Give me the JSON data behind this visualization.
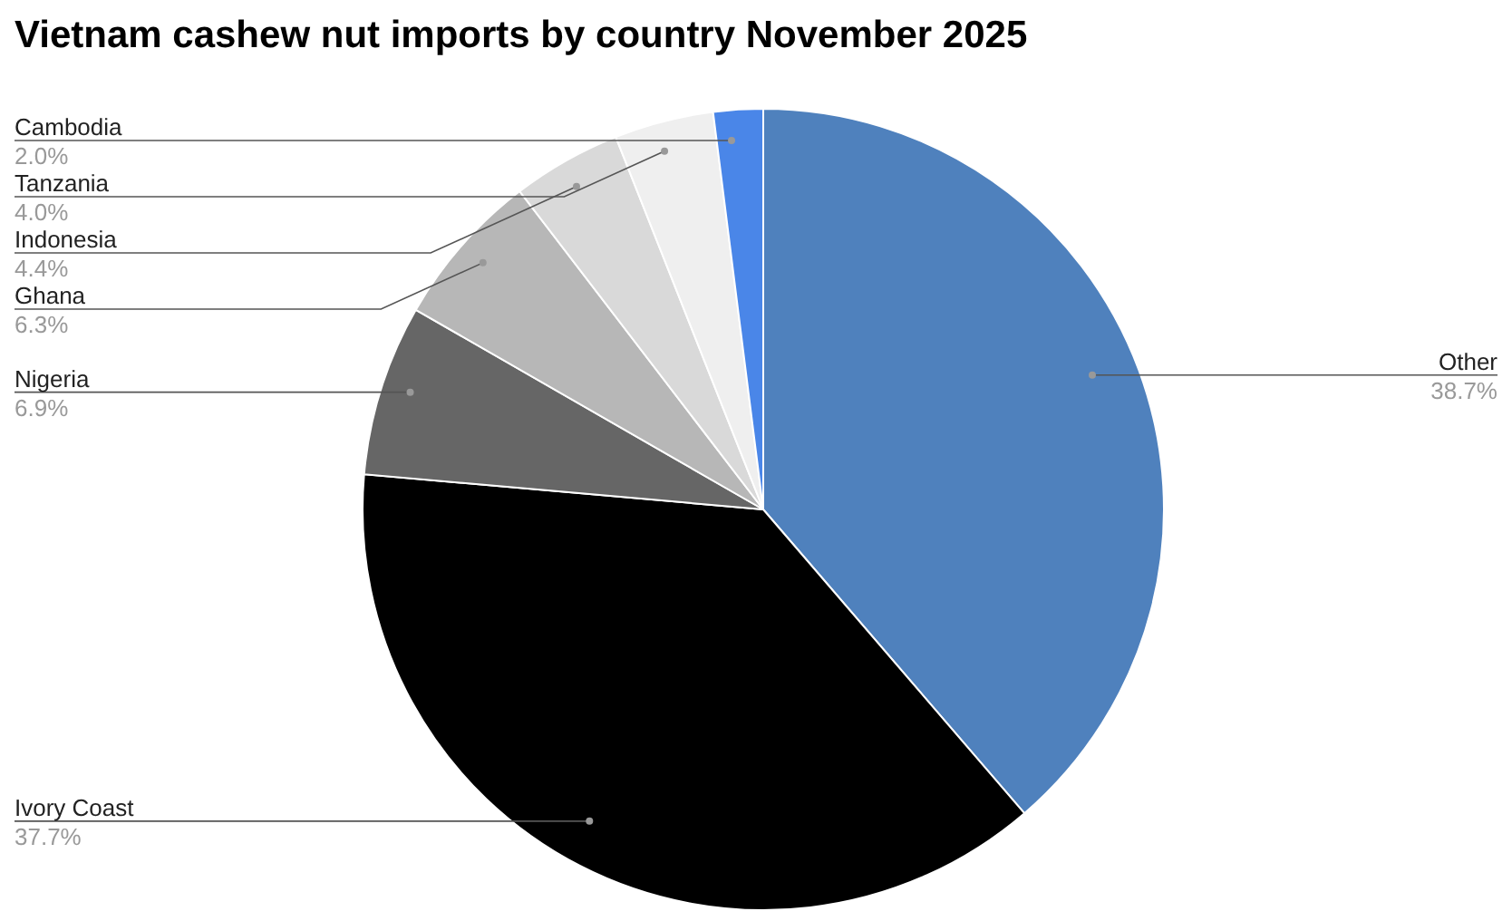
{
  "chart_data": {
    "type": "pie",
    "title": "Vietnam cashew nut imports by country November 2025",
    "categories": [
      "Other",
      "Ivory Coast",
      "Nigeria",
      "Ghana",
      "Indonesia",
      "Tanzania",
      "Cambodia"
    ],
    "values": [
      38.7,
      37.7,
      6.9,
      6.3,
      4.4,
      4.0,
      2.0
    ],
    "value_labels": [
      "38.7%",
      "37.7%",
      "6.9%",
      "6.3%",
      "4.4%",
      "4.0%",
      "2.0%"
    ],
    "colors": [
      "#4f81bd",
      "#000000",
      "#666666",
      "#b7b7b7",
      "#d9d9d9",
      "#efefef",
      "#4a86e8"
    ],
    "legend": false
  }
}
